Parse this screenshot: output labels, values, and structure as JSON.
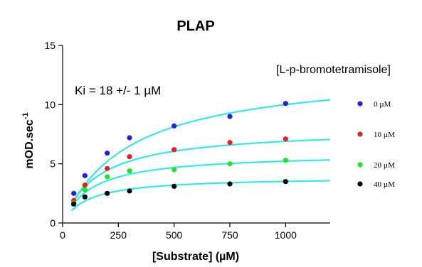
{
  "chart_data": {
    "type": "scatter",
    "title": "PLAP",
    "xlabel": "[Substrate] (µM)",
    "ylabel_main": "mOD.sec",
    "ylabel_sup": "-1",
    "xlim": [
      0,
      1200
    ],
    "ylim": [
      0,
      15
    ],
    "x_ticks": [
      0,
      250,
      500,
      750,
      1000
    ],
    "x_tick_labels": [
      "0",
      "250",
      "500",
      "750",
      "1000"
    ],
    "y_ticks": [
      0,
      5,
      10,
      15
    ],
    "y_tick_labels": [
      "0",
      "5",
      "10",
      "15"
    ],
    "grid": false,
    "legend_title": "[L-p-bromotetramisole]",
    "legend_position": "right",
    "annotation": "Ki = 18 +/- 1 µM",
    "fit_color": "#33e6f0",
    "series": [
      {
        "name": "0 µM",
        "color": "#1f1fe6",
        "x": [
          50,
          100,
          200,
          300,
          500,
          750,
          1000
        ],
        "y": [
          2.5,
          4.0,
          5.9,
          7.2,
          8.2,
          9.0,
          10.1
        ],
        "fit": {
          "vmax": 13.0,
          "km": 300
        }
      },
      {
        "name": "10 µM",
        "color": "#e61f1f",
        "x": [
          50,
          100,
          200,
          300,
          500,
          750,
          1000
        ],
        "y": [
          1.9,
          3.2,
          4.6,
          5.6,
          6.2,
          6.8,
          7.1
        ],
        "fit": {
          "vmax": 8.0,
          "km": 160
        }
      },
      {
        "name": "20 µM",
        "color": "#1fe61f",
        "x": [
          50,
          100,
          200,
          300,
          500,
          750,
          1000
        ],
        "y": [
          1.7,
          2.8,
          3.9,
          4.4,
          4.5,
          5.0,
          5.3
        ],
        "fit": {
          "vmax": 5.9,
          "km": 130
        }
      },
      {
        "name": "40 µM",
        "color": "#000000",
        "x": [
          50,
          100,
          200,
          300,
          500,
          750,
          1000
        ],
        "y": [
          1.6,
          2.2,
          2.5,
          2.7,
          3.1,
          3.3,
          3.5
        ],
        "fit": {
          "vmax": 3.9,
          "km": 110
        }
      }
    ]
  }
}
